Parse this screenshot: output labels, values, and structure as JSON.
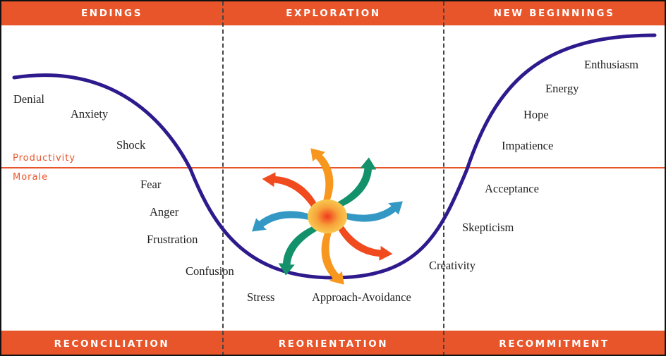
{
  "phases_top": [
    "ENDINGS",
    "EXPLORATION",
    "NEW BEGINNINGS"
  ],
  "phases_bottom": [
    "RECONCILIATION",
    "REORIENTATION",
    "RECOMMITMENT"
  ],
  "axis_labels": {
    "upper": "Productivity",
    "lower": "Morale"
  },
  "stages": [
    "Denial",
    "Anxiety",
    "Shock",
    "Fear",
    "Anger",
    "Frustration",
    "Confusion",
    "Stress",
    "Approach-Avoidance",
    "Creativity",
    "Skepticism",
    "Acceptance",
    "Impatience",
    "Hope",
    "Energy",
    "Enthusiasm"
  ],
  "colors": {
    "band": "#E8552A",
    "curve": "#2E1A8C",
    "swirl": [
      "#12916A",
      "#3399C4",
      "#F04A1E",
      "#F7971E"
    ]
  }
}
